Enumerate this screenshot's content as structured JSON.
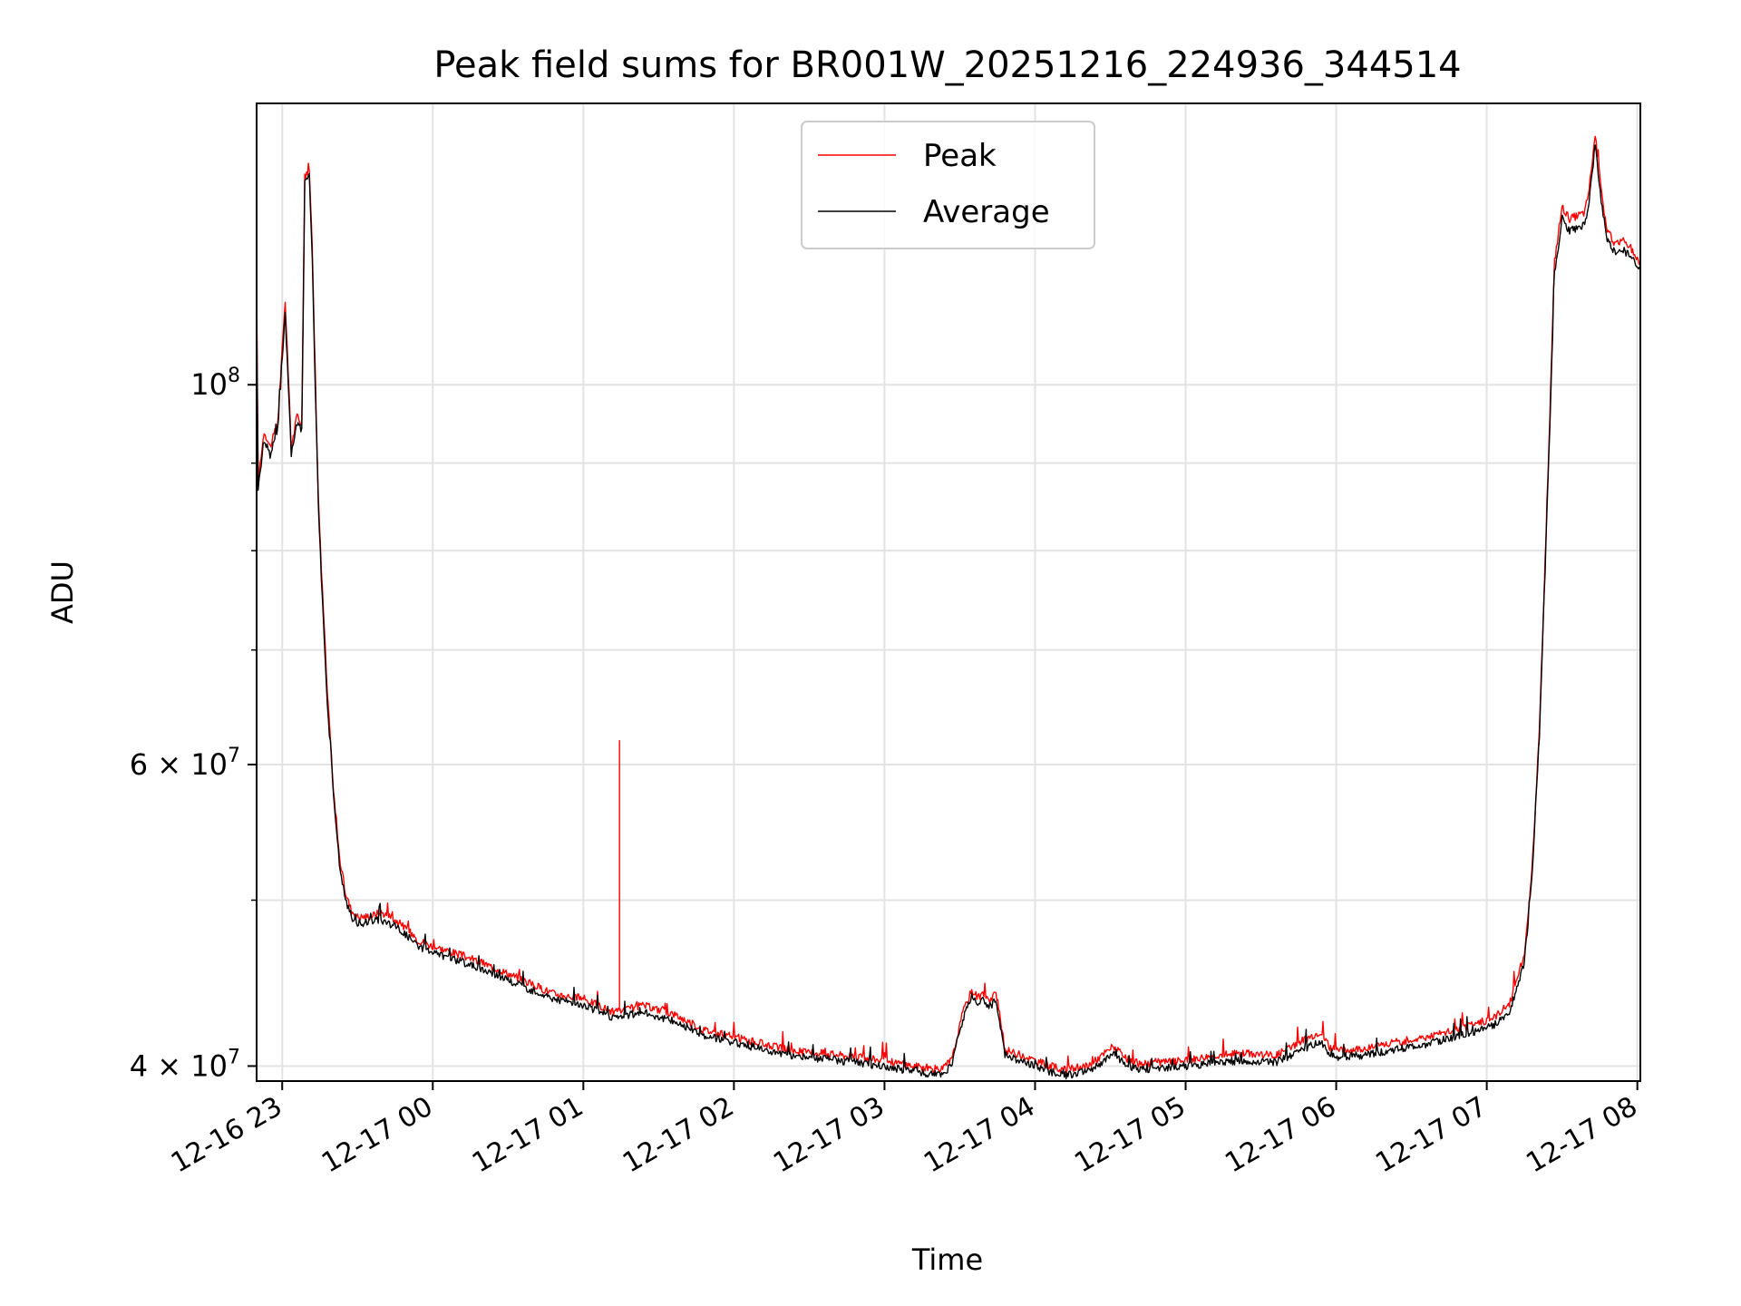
{
  "chart_data": {
    "type": "line",
    "title": "Peak field sums for BR001W_20251216_224936_344514",
    "xlabel": "Time",
    "ylabel": "ADU",
    "yscale": "log",
    "xlim_hours": [
      -1.17,
      8.02
    ],
    "ylim": [
      39200000,
      146000000
    ],
    "grid": true,
    "legend_position": "upper center",
    "x_ticks": [
      {
        "hour": -1,
        "label": "12-16 23"
      },
      {
        "hour": 0,
        "label": "12-17 00"
      },
      {
        "hour": 1,
        "label": "12-17 01"
      },
      {
        "hour": 2,
        "label": "12-17 02"
      },
      {
        "hour": 3,
        "label": "12-17 03"
      },
      {
        "hour": 4,
        "label": "12-17 04"
      },
      {
        "hour": 5,
        "label": "12-17 05"
      },
      {
        "hour": 6,
        "label": "12-17 06"
      },
      {
        "hour": 7,
        "label": "12-17 07"
      },
      {
        "hour": 8,
        "label": "12-17 08"
      }
    ],
    "y_ticks": [
      {
        "value": 40000000,
        "base": "4",
        "sup": "7"
      },
      {
        "value": 60000000,
        "base": "6",
        "sup": "7"
      },
      {
        "value": 100000000,
        "base": "10",
        "sup": "8"
      }
    ],
    "y_minor_ticks": [
      50000000,
      70000000,
      80000000,
      90000000
    ],
    "series": [
      {
        "name": "Peak",
        "color": "#ff0000",
        "x_hours": [
          -1.17,
          -1.16,
          -1.12,
          -1.08,
          -1.03,
          -0.98,
          -0.94,
          -0.9,
          -0.87,
          -0.85,
          -0.82,
          -0.8,
          -0.78,
          -0.76,
          -0.74,
          -0.72,
          -0.7,
          -0.66,
          -0.62,
          -0.58,
          -0.54,
          -0.5,
          -0.45,
          -0.4,
          -0.35,
          -0.3,
          -0.25,
          -0.2,
          -0.15,
          -0.1,
          0.0,
          0.2,
          0.4,
          0.6,
          0.8,
          1.0,
          1.2,
          1.4,
          1.6,
          1.8,
          2.0,
          2.2,
          2.4,
          2.6,
          2.8,
          3.0,
          3.2,
          3.38,
          3.45,
          3.52,
          3.58,
          3.62,
          3.66,
          3.7,
          3.74,
          3.8,
          3.9,
          4.0,
          4.1,
          4.2,
          4.35,
          4.45,
          4.52,
          4.6,
          4.7,
          4.8,
          5.0,
          5.2,
          5.4,
          5.6,
          5.8,
          5.9,
          5.95,
          6.0,
          6.2,
          6.4,
          6.6,
          6.8,
          6.95,
          7.05,
          7.15,
          7.25,
          7.3,
          7.35,
          7.4,
          7.45,
          7.5,
          7.55,
          7.6,
          7.65,
          7.68,
          7.72,
          7.76,
          7.8,
          7.85,
          7.9,
          7.95,
          8.0,
          8.02
        ],
        "y_values": [
          116000000,
          88000000,
          94000000,
          92000000,
          95000000,
          112000000,
          92000000,
          96000000,
          95000000,
          132000000,
          134000000,
          120000000,
          100000000,
          86000000,
          78000000,
          72000000,
          66000000,
          58000000,
          53000000,
          50500000,
          49300000,
          48900000,
          48900000,
          49000000,
          49200000,
          49000000,
          48700000,
          48300000,
          47900000,
          47400000,
          47000000,
          46400000,
          45700000,
          44900000,
          44100000,
          43800000,
          43000000,
          43400000,
          42900000,
          42000000,
          41600000,
          41200000,
          40800000,
          40700000,
          40500000,
          40300000,
          40000000,
          39800000,
          40400000,
          43000000,
          44300000,
          43900000,
          44100000,
          43600000,
          44200000,
          40900000,
          40600000,
          40300000,
          40000000,
          39800000,
          40000000,
          40600000,
          41100000,
          40400000,
          40100000,
          40200000,
          40300000,
          40600000,
          40700000,
          40600000,
          41500000,
          41900000,
          41100000,
          40800000,
          41000000,
          41300000,
          41600000,
          42000000,
          42400000,
          42700000,
          43500000,
          46500000,
          52000000,
          63000000,
          85000000,
          118000000,
          127000000,
          125000000,
          125500000,
          126000000,
          130000000,
          140000000,
          130000000,
          123000000,
          121000000,
          121500000,
          120500000,
          118500000,
          117500000
        ]
      },
      {
        "name": "Average",
        "color": "#000000",
        "x_hours": [
          -1.17,
          -1.16,
          -1.12,
          -1.08,
          -1.03,
          -0.98,
          -0.94,
          -0.9,
          -0.87,
          -0.85,
          -0.82,
          -0.8,
          -0.78,
          -0.76,
          -0.74,
          -0.72,
          -0.7,
          -0.66,
          -0.62,
          -0.58,
          -0.54,
          -0.5,
          -0.45,
          -0.4,
          -0.35,
          -0.3,
          -0.25,
          -0.2,
          -0.15,
          -0.1,
          0.0,
          0.2,
          0.4,
          0.6,
          0.8,
          1.0,
          1.2,
          1.4,
          1.6,
          1.8,
          2.0,
          2.2,
          2.4,
          2.6,
          2.8,
          3.0,
          3.2,
          3.38,
          3.45,
          3.52,
          3.58,
          3.62,
          3.66,
          3.7,
          3.74,
          3.8,
          3.9,
          4.0,
          4.1,
          4.2,
          4.35,
          4.45,
          4.52,
          4.6,
          4.7,
          4.8,
          5.0,
          5.2,
          5.4,
          5.6,
          5.8,
          5.9,
          5.95,
          6.0,
          6.2,
          6.4,
          6.6,
          6.8,
          6.95,
          7.05,
          7.15,
          7.25,
          7.3,
          7.35,
          7.4,
          7.45,
          7.5,
          7.55,
          7.6,
          7.65,
          7.68,
          7.72,
          7.76,
          7.8,
          7.85,
          7.9,
          7.95,
          8.0,
          8.02
        ],
        "y_values": [
          112000000,
          87000000,
          93000000,
          91000000,
          94000000,
          110000000,
          91000000,
          95000000,
          94000000,
          131000000,
          133000000,
          118000000,
          99000000,
          85000000,
          77000000,
          71000000,
          65000000,
          57500000,
          52500000,
          50000000,
          48900000,
          48500000,
          48500000,
          48600000,
          48700000,
          48500000,
          48300000,
          47900000,
          47500000,
          47000000,
          46600000,
          46000000,
          45300000,
          44500000,
          43800000,
          43400000,
          42700000,
          43000000,
          42500000,
          41700000,
          41300000,
          40900000,
          40500000,
          40400000,
          40200000,
          40000000,
          39700000,
          39500000,
          40100000,
          42600000,
          43900000,
          43500000,
          43700000,
          43300000,
          43800000,
          40600000,
          40300000,
          40000000,
          39700000,
          39500000,
          39700000,
          40200000,
          40700000,
          40100000,
          39800000,
          39900000,
          40000000,
          40200000,
          40300000,
          40200000,
          41000000,
          41400000,
          40700000,
          40500000,
          40600000,
          40900000,
          41200000,
          41600000,
          42000000,
          42300000,
          43000000,
          46000000,
          51500000,
          62500000,
          84000000,
          116000000,
          125000000,
          123000000,
          123500000,
          124000000,
          128000000,
          138000000,
          128000000,
          121500000,
          119500000,
          120000000,
          119000000,
          117500000,
          116500000
        ]
      }
    ],
    "annotations": [
      {
        "type": "spike",
        "series": "Peak",
        "x_hour": 1.24,
        "y": 62000000
      }
    ]
  }
}
